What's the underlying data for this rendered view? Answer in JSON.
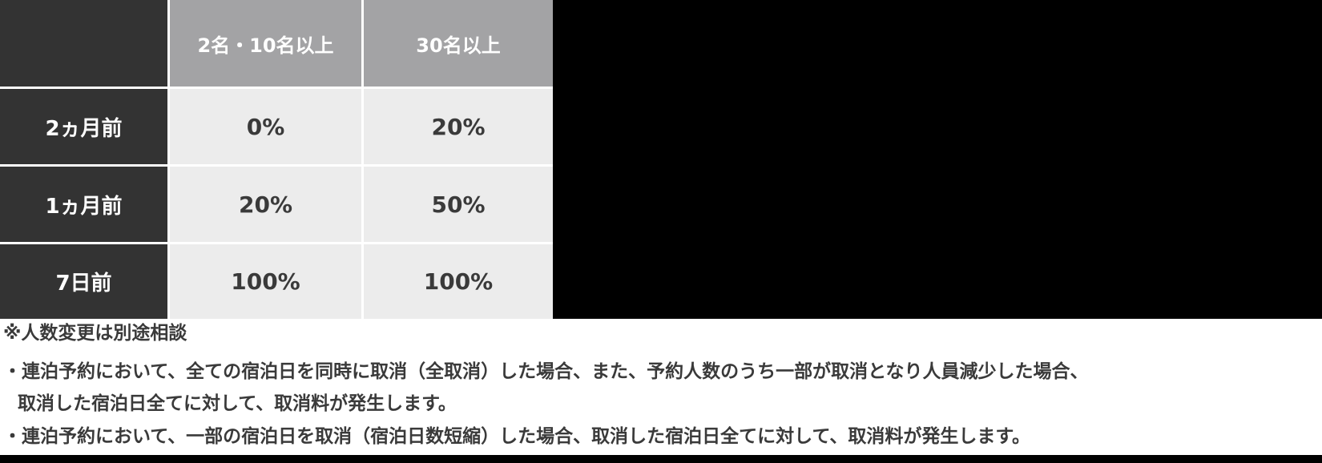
{
  "table": {
    "corner_label": "",
    "column_headers": [
      "2名・10名以上",
      "30名以上"
    ],
    "rows": [
      {
        "label": "2ヵ月前",
        "values": [
          "0%",
          "20%"
        ]
      },
      {
        "label": "1ヵ月前",
        "values": [
          "20%",
          "50%"
        ]
      },
      {
        "label": "7日前",
        "values": [
          "100%",
          "100%"
        ]
      }
    ]
  },
  "notes": {
    "capacity_change": "※人数変更は別途相談",
    "bullet1_line1": "・連泊予約において、全ての宿泊日を同時に取消（全取消）した場合、また、予約人数のうち一部が取消となり人員減少した場合、",
    "bullet1_line2": "取消した宿泊日全てに対して、取消料が発生します。",
    "bullet2": "・連泊予約において、一部の宿泊日を取消（宿泊日数短縮）した場合、取消した宿泊日全てに対して、取消料が発生します。"
  },
  "colors": {
    "row_header_dark": "#333333",
    "column_header_gray": "#a3a3a5",
    "value_cell_light": "#ececec",
    "text_dark": "#3a3a3a",
    "gridline_white": "#ffffff",
    "background_black": "#000000",
    "background_white": "#ffffff"
  }
}
